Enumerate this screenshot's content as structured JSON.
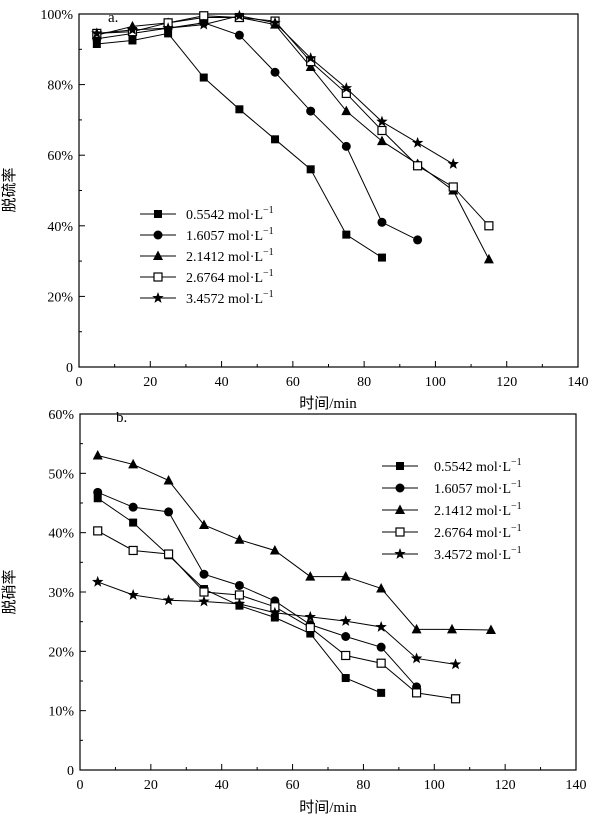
{
  "figure": {
    "colors": {
      "ink": "#000000",
      "open_marker_fill": "#ffffff"
    },
    "legend_entries": [
      {
        "text": "0.5542 mol·L",
        "sup": "−1",
        "marker": "square-filled"
      },
      {
        "text": "1.6057 mol·L",
        "sup": "−1",
        "marker": "circle-filled"
      },
      {
        "text": "2.1412 mol·L",
        "sup": "−1",
        "marker": "triangle-filled"
      },
      {
        "text": "2.6764 mol·L",
        "sup": "−1",
        "marker": "square-open"
      },
      {
        "text": "3.4572 mol·L",
        "sup": "−1",
        "marker": "star-filled"
      }
    ]
  },
  "chart_data": [
    {
      "type": "line",
      "panel_label": "a.",
      "xlabel": "时间/min",
      "ylabel": "脱硫率",
      "xlim": [
        0,
        140
      ],
      "ylim": [
        0,
        100
      ],
      "x_ticks": [
        0,
        20,
        40,
        60,
        80,
        100,
        120,
        140
      ],
      "x_tick_labels": [
        "0",
        "20",
        "40",
        "60",
        "80",
        "100",
        "120",
        "140"
      ],
      "y_ticks": [
        0,
        20,
        40,
        60,
        80,
        100
      ],
      "y_tick_labels": [
        "0",
        "20%",
        "40%",
        "60%",
        "80%",
        "100%"
      ],
      "legend_position": "bottom-left",
      "grid": false,
      "series": [
        {
          "name": "0.5542 mol·L−1",
          "marker": "square-filled",
          "x": [
            5,
            15,
            25,
            35,
            45,
            55,
            65,
            75,
            85
          ],
          "y": [
            91.5,
            92.5,
            94.5,
            82,
            73,
            64.5,
            56,
            37.5,
            31
          ]
        },
        {
          "name": "1.6057 mol·L−1",
          "marker": "circle-filled",
          "x": [
            5,
            15,
            25,
            35,
            45,
            55,
            65,
            75,
            85,
            95
          ],
          "y": [
            93,
            94.5,
            96,
            97.5,
            94,
            83.5,
            72.5,
            62.5,
            41,
            36
          ]
        },
        {
          "name": "2.1412 mol·L−1",
          "marker": "triangle-filled",
          "x": [
            5,
            15,
            25,
            35,
            45,
            55,
            65,
            75,
            85,
            95,
            105,
            115
          ],
          "y": [
            94,
            96.5,
            97.5,
            99,
            99,
            97,
            85,
            72.5,
            64,
            57.5,
            50,
            30.5
          ]
        },
        {
          "name": "2.6764 mol·L−1",
          "marker": "square-open",
          "x": [
            5,
            15,
            25,
            35,
            45,
            55,
            65,
            75,
            85,
            95,
            105,
            115
          ],
          "y": [
            94.5,
            95,
            97.5,
            99.5,
            99,
            98,
            86.5,
            77.5,
            67,
            57,
            51,
            40
          ]
        },
        {
          "name": "3.4572 mol·L−1",
          "marker": "star-filled",
          "x": [
            5,
            15,
            25,
            35,
            45,
            55,
            65,
            75,
            85,
            95,
            105
          ],
          "y": [
            94.5,
            95.5,
            96,
            97,
            99.5,
            97.5,
            87.5,
            79,
            69.5,
            63.5,
            57.5
          ]
        }
      ]
    },
    {
      "type": "line",
      "panel_label": "b.",
      "xlabel": "时间/min",
      "ylabel": "脱硝率",
      "xlim": [
        0,
        140
      ],
      "ylim": [
        0,
        60
      ],
      "x_ticks": [
        0,
        20,
        40,
        60,
        80,
        100,
        120,
        140
      ],
      "x_tick_labels": [
        "0",
        "20",
        "40",
        "60",
        "80",
        "100",
        "120",
        "140"
      ],
      "y_ticks": [
        0,
        10,
        20,
        30,
        40,
        50,
        60
      ],
      "y_tick_labels": [
        "0",
        "10%",
        "20%",
        "30%",
        "40%",
        "50%",
        "60%"
      ],
      "legend_position": "top-right",
      "grid": false,
      "series": [
        {
          "name": "0.5542 mol·L−1",
          "marker": "square-filled",
          "x": [
            5,
            15,
            25,
            35,
            45,
            55,
            65,
            75,
            85
          ],
          "y": [
            45.8,
            41.7,
            36.2,
            30.5,
            27.7,
            25.7,
            23,
            15.5,
            13
          ]
        },
        {
          "name": "1.6057 mol·L−1",
          "marker": "circle-filled",
          "x": [
            5,
            15,
            25,
            35,
            45,
            55,
            65,
            75,
            85,
            95
          ],
          "y": [
            46.8,
            44.3,
            43.5,
            33,
            31.1,
            28.5,
            24.5,
            22.5,
            20.7,
            14
          ]
        },
        {
          "name": "2.1412 mol·L−1",
          "marker": "triangle-filled",
          "x": [
            5,
            15,
            25,
            35,
            45,
            55,
            65,
            75,
            85,
            95,
            105,
            116
          ],
          "y": [
            53,
            51.5,
            48.8,
            41.3,
            38.8,
            37,
            32.6,
            32.6,
            30.6,
            23.7,
            23.7,
            23.6
          ]
        },
        {
          "name": "2.6764 mol·L−1",
          "marker": "square-open",
          "x": [
            5,
            15,
            25,
            35,
            45,
            55,
            65,
            75,
            85,
            95,
            106
          ],
          "y": [
            40.3,
            37,
            36.4,
            30,
            29.5,
            27.5,
            24,
            19.3,
            18,
            13,
            12
          ]
        },
        {
          "name": "3.4572 mol·L−1",
          "marker": "star-filled",
          "x": [
            5,
            15,
            25,
            35,
            45,
            55,
            65,
            75,
            85,
            95,
            106
          ],
          "y": [
            31.7,
            29.5,
            28.6,
            28.4,
            28,
            26.5,
            25.8,
            25.1,
            24.1,
            18.8,
            17.8
          ]
        }
      ]
    }
  ]
}
